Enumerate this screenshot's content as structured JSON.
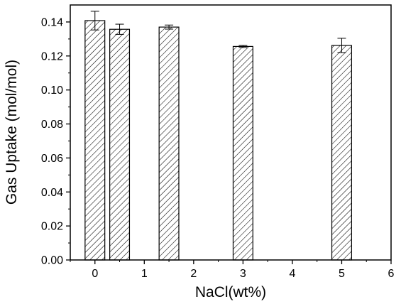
{
  "chart_data": {
    "type": "bar",
    "title": "",
    "xlabel": "NaCl(wt%)",
    "ylabel": "Gas Uptake (mol/mol)",
    "xlim": [
      -0.5,
      6
    ],
    "ylim": [
      0.0,
      0.15
    ],
    "x_ticks": [
      "0",
      "1",
      "2",
      "3",
      "4",
      "5",
      "6"
    ],
    "y_ticks": [
      "0.00",
      "0.02",
      "0.04",
      "0.06",
      "0.08",
      "0.10",
      "0.12",
      "0.14"
    ],
    "bar_width": 0.4,
    "bar_fill": "hatched",
    "bar_color": "#000000",
    "grid": false,
    "legend": "none",
    "bars": [
      {
        "x": 0.0,
        "value": 0.1408,
        "error": 0.0055
      },
      {
        "x": 0.5,
        "value": 0.1357,
        "error": 0.003
      },
      {
        "x": 1.5,
        "value": 0.137,
        "error": 0.0012
      },
      {
        "x": 3.0,
        "value": 0.1256,
        "error": 0.0006
      },
      {
        "x": 5.0,
        "value": 0.1262,
        "error": 0.0042
      }
    ]
  }
}
